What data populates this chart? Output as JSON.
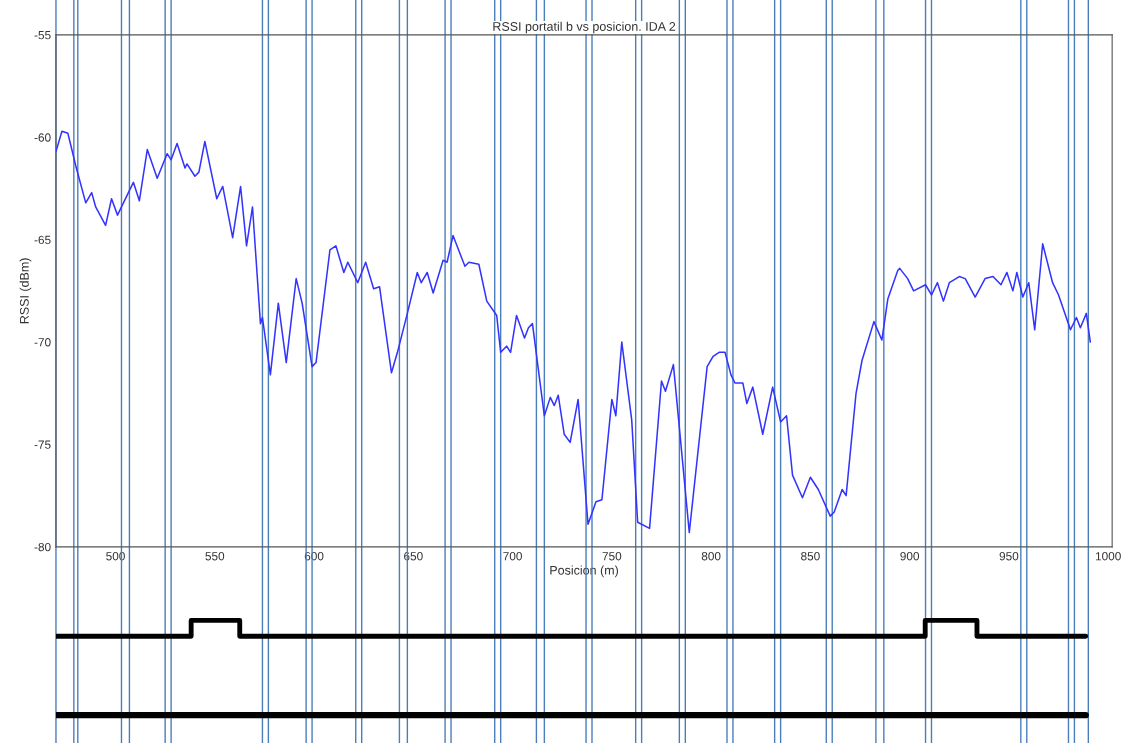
{
  "chart_data": {
    "type": "line",
    "title": "RSSI portatil b vs posicion. IDA 2",
    "xlabel": "Posicion (m)",
    "ylabel": "RSSI (dBm)",
    "xlim": [
      470,
      1002
    ],
    "ylim": [
      -80,
      -55
    ],
    "xticks": [
      500,
      550,
      600,
      650,
      700,
      750,
      800,
      850,
      900,
      950,
      1000
    ],
    "yticks": [
      -80,
      -75,
      -70,
      -65,
      -60,
      -55
    ],
    "grid": false,
    "legend": false,
    "marker": "none",
    "line_style": "solid",
    "series": [
      {
        "color": "#3333ff",
        "x": [
          470,
          473,
          476,
          480,
          485,
          488,
          490,
          495,
          498,
          501,
          506,
          509,
          512,
          516,
          521,
          526,
          528,
          531,
          535,
          536,
          540,
          542,
          545,
          551,
          554,
          559,
          563,
          566,
          569,
          573,
          574,
          578,
          582,
          586,
          591,
          594,
          599,
          601,
          608,
          611,
          615,
          617,
          622,
          626,
          630,
          633,
          639,
          642,
          647,
          652,
          654,
          657,
          660,
          665,
          667,
          670,
          676,
          678,
          683,
          687,
          692,
          694,
          697,
          699,
          702,
          706,
          708,
          710,
          716,
          719,
          721,
          723,
          726,
          729,
          733,
          738,
          742,
          745,
          750,
          752,
          755,
          760,
          763,
          769,
          775,
          777,
          781,
          789,
          798,
          801,
          804,
          807,
          810,
          812,
          816,
          818,
          821,
          826,
          831,
          835,
          838,
          841,
          846,
          850,
          854,
          860,
          862,
          866,
          868,
          873,
          876,
          882,
          886,
          889,
          894,
          895,
          899,
          902,
          908,
          911,
          914,
          917,
          920,
          925,
          928,
          933,
          938,
          942,
          946,
          949,
          952,
          954,
          957,
          960,
          963,
          967,
          972,
          975,
          981,
          984,
          986,
          989,
          991
        ],
        "values": [
          -60.7,
          -59.7,
          -59.8,
          -61.4,
          -63.2,
          -62.7,
          -63.4,
          -64.3,
          -63.0,
          -63.8,
          -62.8,
          -62.2,
          -63.1,
          -60.6,
          -62.0,
          -60.8,
          -61.1,
          -60.3,
          -61.5,
          -61.3,
          -61.9,
          -61.7,
          -60.2,
          -63.0,
          -62.4,
          -64.9,
          -62.4,
          -65.3,
          -63.4,
          -69.1,
          -68.8,
          -71.6,
          -68.1,
          -71.0,
          -66.9,
          -68.1,
          -71.2,
          -71.0,
          -65.5,
          -65.3,
          -66.6,
          -66.1,
          -67.1,
          -66.1,
          -67.4,
          -67.3,
          -71.5,
          -70.5,
          -68.6,
          -66.6,
          -67.1,
          -66.6,
          -67.6,
          -66.0,
          -66.1,
          -64.8,
          -66.3,
          -66.1,
          -66.2,
          -68.0,
          -68.7,
          -70.5,
          -70.2,
          -70.5,
          -68.7,
          -69.8,
          -69.3,
          -69.1,
          -73.6,
          -72.7,
          -73.1,
          -72.6,
          -74.5,
          -74.9,
          -72.8,
          -78.9,
          -77.8,
          -77.7,
          -72.8,
          -73.6,
          -70.0,
          -73.8,
          -78.8,
          -79.1,
          -71.9,
          -72.4,
          -71.1,
          -79.3,
          -71.2,
          -70.7,
          -70.5,
          -70.5,
          -71.6,
          -72.0,
          -72.0,
          -73.0,
          -72.2,
          -74.5,
          -72.2,
          -73.9,
          -73.6,
          -76.5,
          -77.6,
          -76.6,
          -77.2,
          -78.5,
          -78.3,
          -77.2,
          -77.5,
          -72.5,
          -70.9,
          -69.0,
          -69.9,
          -67.9,
          -66.5,
          -66.4,
          -66.9,
          -67.5,
          -67.2,
          -67.7,
          -67.1,
          -68.0,
          -67.1,
          -66.8,
          -66.9,
          -67.8,
          -66.9,
          -66.8,
          -67.2,
          -66.6,
          -67.5,
          -66.6,
          -67.8,
          -67.1,
          -69.4,
          -65.2,
          -67.1,
          -67.7,
          -69.4,
          -68.8,
          -69.3,
          -68.6,
          -70.0
        ]
      }
    ],
    "ref_lines": [
      {
        "axis": "x",
        "value": 470,
        "color": "#4a7ebb"
      },
      {
        "axis": "x",
        "value": 479,
        "color": "#4a7ebb"
      },
      {
        "axis": "x",
        "value": 481,
        "color": "#4a7ebb"
      },
      {
        "axis": "x",
        "value": 503,
        "color": "#4a7ebb"
      },
      {
        "axis": "x",
        "value": 507,
        "color": "#4a7ebb"
      },
      {
        "axis": "x",
        "value": 525,
        "color": "#4a7ebb"
      },
      {
        "axis": "x",
        "value": 528,
        "color": "#4a7ebb"
      },
      {
        "axis": "x",
        "value": 574,
        "color": "#4a7ebb"
      },
      {
        "axis": "x",
        "value": 577,
        "color": "#4a7ebb"
      },
      {
        "axis": "x",
        "value": 596,
        "color": "#4a7ebb"
      },
      {
        "axis": "x",
        "value": 599,
        "color": "#4a7ebb"
      },
      {
        "axis": "x",
        "value": 621,
        "color": "#4a7ebb"
      },
      {
        "axis": "x",
        "value": 624,
        "color": "#4a7ebb"
      },
      {
        "axis": "x",
        "value": 643,
        "color": "#4a7ebb"
      },
      {
        "axis": "x",
        "value": 647,
        "color": "#4a7ebb"
      },
      {
        "axis": "x",
        "value": 666,
        "color": "#4a7ebb"
      },
      {
        "axis": "x",
        "value": 669,
        "color": "#4a7ebb"
      },
      {
        "axis": "x",
        "value": 691,
        "color": "#4a7ebb"
      },
      {
        "axis": "x",
        "value": 694,
        "color": "#4a7ebb"
      },
      {
        "axis": "x",
        "value": 712,
        "color": "#4a7ebb"
      },
      {
        "axis": "x",
        "value": 716,
        "color": "#4a7ebb"
      },
      {
        "axis": "x",
        "value": 737,
        "color": "#4a7ebb"
      },
      {
        "axis": "x",
        "value": 740,
        "color": "#4a7ebb"
      },
      {
        "axis": "x",
        "value": 762,
        "color": "#4a7ebb"
      },
      {
        "axis": "x",
        "value": 765,
        "color": "#4a7ebb"
      },
      {
        "axis": "x",
        "value": 784,
        "color": "#4a7ebb"
      },
      {
        "axis": "x",
        "value": 787,
        "color": "#4a7ebb"
      },
      {
        "axis": "x",
        "value": 808,
        "color": "#4a7ebb"
      },
      {
        "axis": "x",
        "value": 811,
        "color": "#4a7ebb"
      },
      {
        "axis": "x",
        "value": 832,
        "color": "#4a7ebb"
      },
      {
        "axis": "x",
        "value": 835,
        "color": "#4a7ebb"
      },
      {
        "axis": "x",
        "value": 858,
        "color": "#4a7ebb"
      },
      {
        "axis": "x",
        "value": 861,
        "color": "#4a7ebb"
      },
      {
        "axis": "x",
        "value": 883,
        "color": "#4a7ebb"
      },
      {
        "axis": "x",
        "value": 887,
        "color": "#4a7ebb"
      },
      {
        "axis": "x",
        "value": 908,
        "color": "#4a7ebb"
      },
      {
        "axis": "x",
        "value": 911,
        "color": "#4a7ebb"
      },
      {
        "axis": "x",
        "value": 956,
        "color": "#4a7ebb"
      },
      {
        "axis": "x",
        "value": 959,
        "color": "#4a7ebb"
      },
      {
        "axis": "x",
        "value": 980,
        "color": "#4a7ebb"
      },
      {
        "axis": "x",
        "value": 983,
        "color": "#4a7ebb"
      },
      {
        "axis": "x",
        "value": 990,
        "color": "#4a7ebb"
      }
    ]
  }
}
